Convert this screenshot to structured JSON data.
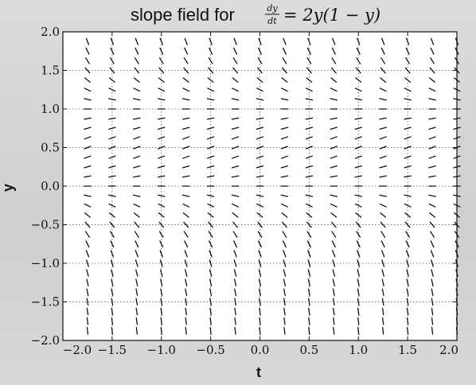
{
  "chart_data": {
    "type": "slope-field",
    "title_prefix": "slope field for",
    "title_equation": {
      "numerator": "dy",
      "denominator": "dt",
      "rhs": "= 2y(1 − y)"
    },
    "xlabel": "t",
    "ylabel": "y",
    "xlim": [
      -2.0,
      2.0
    ],
    "ylim": [
      -2.0,
      2.0
    ],
    "x_ticks": [
      {
        "value": -2.0,
        "label": "−2.0"
      },
      {
        "value": -1.5,
        "label": "−1.5"
      },
      {
        "value": -1.0,
        "label": "−1.0"
      },
      {
        "value": -0.5,
        "label": "−0.5"
      },
      {
        "value": 0.0,
        "label": "0.0"
      },
      {
        "value": 0.5,
        "label": "0.5"
      },
      {
        "value": 1.0,
        "label": "1.0"
      },
      {
        "value": 1.5,
        "label": "1.5"
      },
      {
        "value": 2.0,
        "label": "2.0"
      }
    ],
    "y_ticks": [
      {
        "value": 2.0,
        "label": "2.0"
      },
      {
        "value": 1.5,
        "label": "1.5"
      },
      {
        "value": 1.0,
        "label": "1.0"
      },
      {
        "value": 0.5,
        "label": "0.5"
      },
      {
        "value": 0.0,
        "label": "0.0"
      },
      {
        "value": -0.5,
        "label": "−0.5"
      },
      {
        "value": -1.0,
        "label": "−1.0"
      },
      {
        "value": -1.5,
        "label": "−1.5"
      },
      {
        "value": -2.0,
        "label": "−2.0"
      }
    ],
    "grid": true,
    "grid_style": "dotted",
    "field": {
      "coefficient": 2,
      "t_values": [
        -1.75,
        -1.5,
        -1.25,
        -1.0,
        -0.75,
        -0.5,
        -0.25,
        0.0,
        0.25,
        0.5,
        0.75,
        1.0,
        1.25,
        1.5,
        1.75,
        2.0
      ],
      "y_values": [
        1.875,
        1.75,
        1.625,
        1.5,
        1.375,
        1.25,
        1.125,
        1.0,
        0.875,
        0.75,
        0.625,
        0.5,
        0.375,
        0.25,
        0.125,
        0.0,
        -0.125,
        -0.25,
        -0.375,
        -0.5,
        -0.625,
        -0.75,
        -0.875,
        -1.0,
        -1.125,
        -1.25,
        -1.375,
        -1.5,
        -1.625,
        -1.75,
        -1.875
      ]
    },
    "colors": {
      "segment": "#111111",
      "plot_background": "#ffffff",
      "grid": "#555555"
    }
  }
}
